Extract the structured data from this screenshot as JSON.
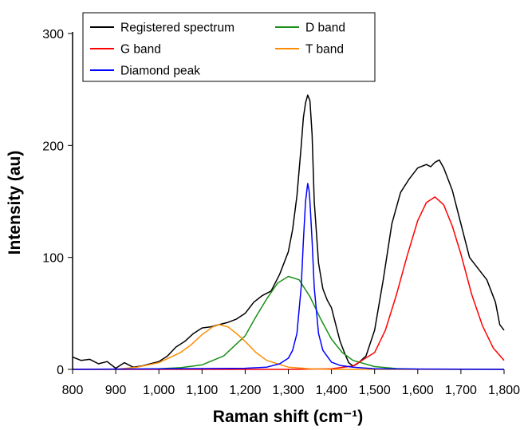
{
  "chart_data": {
    "type": "line",
    "xlabel": "Raman shift (cm⁻¹)",
    "ylabel": "Intensity (au)",
    "xlim": [
      800,
      1800
    ],
    "ylim": [
      0,
      300
    ],
    "x_ticks": [
      800,
      900,
      1000,
      1100,
      1200,
      1300,
      1400,
      1500,
      1600,
      1700,
      1800
    ],
    "x_tick_labels": [
      "800",
      "900",
      "1,000",
      "1,100",
      "1,200",
      "1,300",
      "1,400",
      "1,500",
      "1,600",
      "1,700",
      "1,800"
    ],
    "y_ticks": [
      0,
      100,
      200,
      300
    ],
    "y_tick_labels": [
      "0",
      "100",
      "200",
      "300"
    ],
    "legend_placement": "top-left",
    "legend_columns": 2,
    "series": [
      {
        "name": "Registered spectrum",
        "color": "#000000",
        "x": [
          800,
          820,
          840,
          860,
          880,
          900,
          920,
          940,
          960,
          980,
          1000,
          1020,
          1040,
          1060,
          1080,
          1100,
          1120,
          1140,
          1160,
          1180,
          1200,
          1220,
          1240,
          1260,
          1280,
          1300,
          1310,
          1320,
          1330,
          1335,
          1340,
          1345,
          1350,
          1355,
          1360,
          1370,
          1380,
          1390,
          1400,
          1410,
          1420,
          1430,
          1440,
          1450,
          1460,
          1480,
          1500,
          1520,
          1540,
          1560,
          1580,
          1600,
          1620,
          1630,
          1640,
          1650,
          1660,
          1680,
          1700,
          1720,
          1740,
          1760,
          1780,
          1790,
          1800
        ],
        "y": [
          11,
          8,
          9,
          5,
          7,
          1,
          6,
          2,
          3,
          5,
          7,
          12,
          20,
          25,
          32,
          37,
          38,
          40,
          42,
          45,
          50,
          60,
          66,
          70,
          85,
          105,
          125,
          155,
          200,
          225,
          238,
          245,
          240,
          210,
          150,
          95,
          72,
          62,
          55,
          40,
          25,
          15,
          6,
          3,
          5,
          12,
          35,
          80,
          130,
          158,
          170,
          180,
          183,
          181,
          185,
          187,
          180,
          160,
          130,
          100,
          90,
          80,
          60,
          40,
          35
        ]
      },
      {
        "name": "D band",
        "color": "#1a8f1a",
        "x": [
          800,
          900,
          1000,
          1050,
          1100,
          1150,
          1200,
          1225,
          1250,
          1275,
          1300,
          1325,
          1350,
          1375,
          1400,
          1425,
          1450,
          1500,
          1550,
          1600,
          1800
        ],
        "y": [
          0,
          0,
          0.5,
          1.5,
          4,
          12,
          30,
          47,
          63,
          77,
          83,
          80,
          65,
          45,
          27,
          15,
          8,
          2.5,
          0.7,
          0.2,
          0
        ]
      },
      {
        "name": "G band",
        "color": "#ff0000",
        "x": [
          800,
          1300,
          1400,
          1450,
          1500,
          1525,
          1550,
          1575,
          1600,
          1620,
          1640,
          1660,
          1680,
          1700,
          1725,
          1750,
          1775,
          1800
        ],
        "y": [
          0,
          0,
          0.5,
          3,
          15,
          35,
          66,
          101,
          133,
          149,
          154,
          147,
          128,
          103,
          67,
          39,
          19,
          8
        ]
      },
      {
        "name": "T band",
        "color": "#ff8c00",
        "x": [
          800,
          900,
          950,
          1000,
          1050,
          1075,
          1100,
          1125,
          1140,
          1160,
          1180,
          1200,
          1225,
          1250,
          1300,
          1350,
          1400,
          1800
        ],
        "y": [
          0,
          0,
          2,
          6,
          15,
          22,
          31,
          38,
          40,
          38,
          32,
          25,
          15,
          8,
          2,
          0.5,
          0,
          0
        ]
      },
      {
        "name": "Diamond peak",
        "color": "#0000ff",
        "x": [
          800,
          1200,
          1250,
          1280,
          1300,
          1310,
          1320,
          1330,
          1335,
          1340,
          1345,
          1348,
          1350,
          1355,
          1360,
          1370,
          1380,
          1400,
          1420,
          1450,
          1500,
          1800
        ],
        "y": [
          0,
          1,
          2,
          5,
          10,
          17,
          32,
          74,
          115,
          150,
          166,
          160,
          150,
          115,
          73,
          32,
          17,
          6.5,
          3.5,
          2,
          0.5,
          0
        ]
      }
    ],
    "legend_order": [
      "Registered spectrum",
      "D band",
      "G band",
      "T band",
      "Diamond peak"
    ]
  }
}
